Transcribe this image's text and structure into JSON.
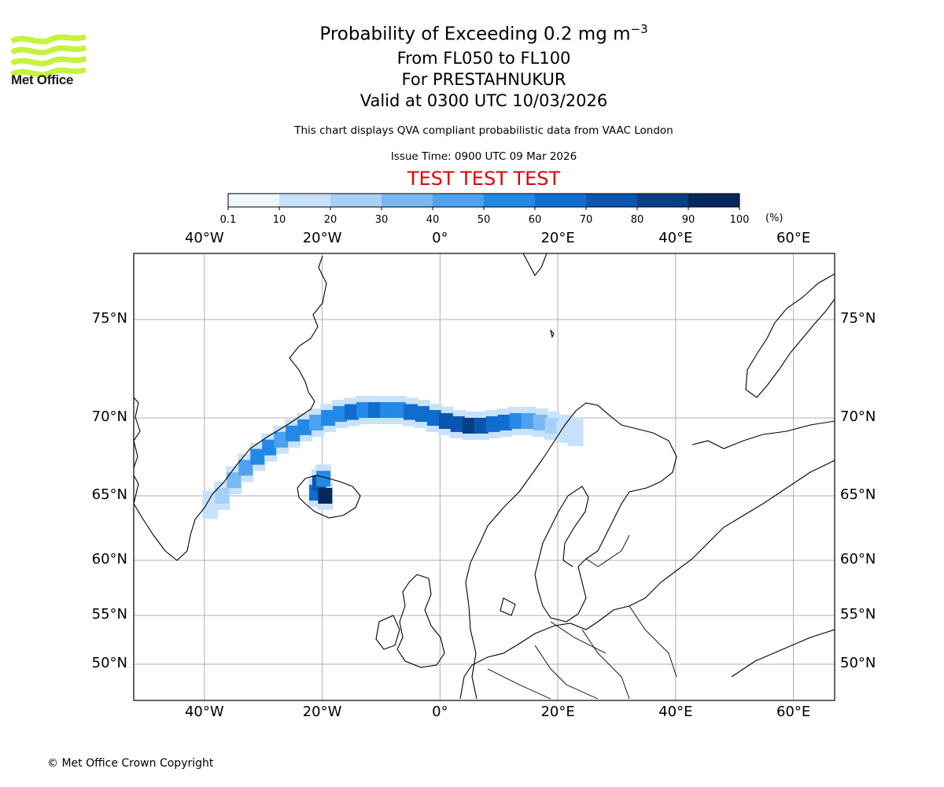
{
  "logo": {
    "text": "Met Office",
    "icon": "met-office-waves-icon",
    "color": "#c6f23d"
  },
  "title": {
    "main": "Probability of Exceeding 0.2 mg m",
    "exponent": "−3",
    "levels": "From FL050 to FL100",
    "volcano": "For PRESTAHNUKUR",
    "valid": "Valid at 0300 UTC 10/03/2026"
  },
  "subtitle": "This chart displays QVA compliant probabilistic data from VAAC London",
  "issue_time": "Issue Time: 0900 UTC 09 Mar 2026",
  "test_banner": "TEST TEST TEST",
  "colorbar": {
    "ticks": [
      "0.1",
      "10",
      "20",
      "30",
      "40",
      "50",
      "60",
      "70",
      "80",
      "90",
      "100"
    ],
    "colors": [
      "#eef6ff",
      "#c9e2fb",
      "#a7d0f7",
      "#79b8f2",
      "#4ea1ee",
      "#2389e6",
      "#0f6dd0",
      "#0a56ad",
      "#063f86",
      "#04285c"
    ],
    "unit": "(%)"
  },
  "axes": {
    "lon_labels": [
      "40°W",
      "20°W",
      "0°",
      "20°E",
      "40°E",
      "60°E"
    ],
    "lat_labels": [
      "75°N",
      "70°N",
      "65°N",
      "60°N",
      "55°N",
      "50°N"
    ]
  },
  "copyright": "© Met Office Crown Copyright",
  "map_data": {
    "type": "heatmap",
    "extent_lon": [
      -52,
      67
    ],
    "lon_grid": [
      -40,
      -20,
      0,
      20,
      40,
      60
    ],
    "lat_grid": [
      75,
      70,
      65,
      60,
      55,
      50
    ],
    "plume": [
      {
        "lon": -39,
        "lat": 64.3,
        "p": 10
      },
      {
        "lon": -37,
        "lat": 65.0,
        "p": 20
      },
      {
        "lon": -35,
        "lat": 66.0,
        "p": 30
      },
      {
        "lon": -33,
        "lat": 66.8,
        "p": 40
      },
      {
        "lon": -31,
        "lat": 67.5,
        "p": 50
      },
      {
        "lon": -29,
        "lat": 68.1,
        "p": 50
      },
      {
        "lon": -27,
        "lat": 68.6,
        "p": 40
      },
      {
        "lon": -25,
        "lat": 69.0,
        "p": 50
      },
      {
        "lon": -23,
        "lat": 69.4,
        "p": 50
      },
      {
        "lon": -21,
        "lat": 69.7,
        "p": 40
      },
      {
        "lon": -19,
        "lat": 70.0,
        "p": 50
      },
      {
        "lon": -17,
        "lat": 70.2,
        "p": 50
      },
      {
        "lon": -15,
        "lat": 70.3,
        "p": 60
      },
      {
        "lon": -13,
        "lat": 70.4,
        "p": 50
      },
      {
        "lon": -11,
        "lat": 70.4,
        "p": 60
      },
      {
        "lon": -9,
        "lat": 70.4,
        "p": 50
      },
      {
        "lon": -7,
        "lat": 70.4,
        "p": 50
      },
      {
        "lon": -5,
        "lat": 70.3,
        "p": 60
      },
      {
        "lon": -3,
        "lat": 70.2,
        "p": 60
      },
      {
        "lon": -1,
        "lat": 70.0,
        "p": 60
      },
      {
        "lon": 1,
        "lat": 69.8,
        "p": 70
      },
      {
        "lon": 3,
        "lat": 69.6,
        "p": 70
      },
      {
        "lon": 5,
        "lat": 69.5,
        "p": 80
      },
      {
        "lon": 7,
        "lat": 69.5,
        "p": 70
      },
      {
        "lon": 9,
        "lat": 69.6,
        "p": 60
      },
      {
        "lon": 11,
        "lat": 69.7,
        "p": 60
      },
      {
        "lon": 13,
        "lat": 69.8,
        "p": 50
      },
      {
        "lon": 15,
        "lat": 69.8,
        "p": 40
      },
      {
        "lon": 17,
        "lat": 69.7,
        "p": 30
      },
      {
        "lon": 19,
        "lat": 69.5,
        "p": 20
      },
      {
        "lon": 21,
        "lat": 69.3,
        "p": 10
      },
      {
        "lon": 23,
        "lat": 69.1,
        "p": 10
      },
      {
        "lon": -21,
        "lat": 65.2,
        "p": 60
      },
      {
        "lon": -20.5,
        "lat": 65.8,
        "p": 70
      },
      {
        "lon": -19.5,
        "lat": 65.0,
        "p": 90
      },
      {
        "lon": -19.8,
        "lat": 66.1,
        "p": 50
      }
    ]
  }
}
